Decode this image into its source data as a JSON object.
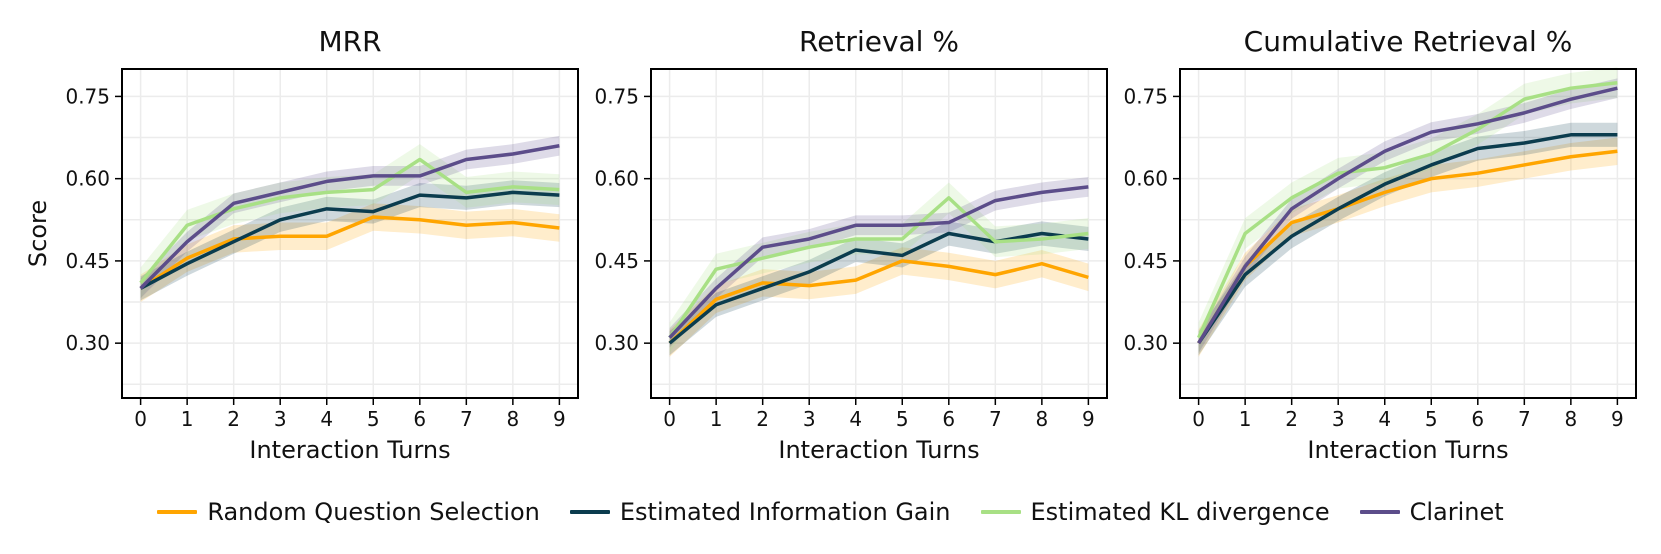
{
  "chart_data": [
    {
      "type": "line",
      "title": "MRR",
      "xlabel": "Interaction Turns",
      "ylabel": "Score",
      "x": [
        0,
        1,
        2,
        3,
        4,
        5,
        6,
        7,
        8,
        9
      ],
      "ylim": [
        0.2,
        0.8
      ],
      "yticks": [
        "0.30",
        "0.45",
        "0.60",
        "0.75"
      ],
      "grid": true,
      "series": [
        {
          "name": "Random Question Selection",
          "values": [
            0.4,
            0.455,
            0.49,
            0.495,
            0.495,
            0.53,
            0.525,
            0.515,
            0.52,
            0.51
          ]
        },
        {
          "name": "Estimated Information Gain",
          "values": [
            0.4,
            0.445,
            0.485,
            0.525,
            0.545,
            0.54,
            0.57,
            0.565,
            0.575,
            0.57
          ]
        },
        {
          "name": "Estimated KL divergence",
          "values": [
            0.41,
            0.515,
            0.545,
            0.565,
            0.575,
            0.58,
            0.635,
            0.575,
            0.585,
            0.58
          ]
        },
        {
          "name": "Clarinet",
          "values": [
            0.4,
            0.485,
            0.555,
            0.575,
            0.595,
            0.605,
            0.605,
            0.635,
            0.645,
            0.66
          ]
        }
      ]
    },
    {
      "type": "line",
      "title": "Retrieval %",
      "xlabel": "Interaction Turns",
      "ylabel": "",
      "x": [
        0,
        1,
        2,
        3,
        4,
        5,
        6,
        7,
        8,
        9
      ],
      "ylim": [
        0.2,
        0.8
      ],
      "yticks": [
        "0.30",
        "0.45",
        "0.60",
        "0.75"
      ],
      "grid": true,
      "series": [
        {
          "name": "Random Question Selection",
          "values": [
            0.3,
            0.38,
            0.41,
            0.405,
            0.415,
            0.45,
            0.44,
            0.425,
            0.445,
            0.42
          ]
        },
        {
          "name": "Estimated Information Gain",
          "values": [
            0.3,
            0.37,
            0.4,
            0.43,
            0.47,
            0.46,
            0.5,
            0.485,
            0.5,
            0.49
          ]
        },
        {
          "name": "Estimated KL divergence",
          "values": [
            0.31,
            0.435,
            0.455,
            0.475,
            0.49,
            0.49,
            0.565,
            0.485,
            0.49,
            0.5
          ]
        },
        {
          "name": "Clarinet",
          "values": [
            0.31,
            0.4,
            0.475,
            0.49,
            0.515,
            0.515,
            0.52,
            0.56,
            0.575,
            0.585
          ]
        }
      ]
    },
    {
      "type": "line",
      "title": "Cumulative Retrieval %",
      "xlabel": "Interaction Turns",
      "ylabel": "",
      "x": [
        0,
        1,
        2,
        3,
        4,
        5,
        6,
        7,
        8,
        9
      ],
      "ylim": [
        0.2,
        0.8
      ],
      "yticks": [
        "0.30",
        "0.45",
        "0.60",
        "0.75"
      ],
      "grid": true,
      "series": [
        {
          "name": "Random Question Selection",
          "values": [
            0.3,
            0.44,
            0.52,
            0.545,
            0.575,
            0.6,
            0.61,
            0.625,
            0.64,
            0.65
          ]
        },
        {
          "name": "Estimated Information Gain",
          "values": [
            0.3,
            0.425,
            0.495,
            0.545,
            0.59,
            0.625,
            0.655,
            0.665,
            0.68,
            0.68
          ]
        },
        {
          "name": "Estimated KL divergence",
          "values": [
            0.31,
            0.5,
            0.565,
            0.61,
            0.62,
            0.645,
            0.69,
            0.745,
            0.765,
            0.775
          ]
        },
        {
          "name": "Clarinet",
          "values": [
            0.3,
            0.44,
            0.545,
            0.6,
            0.65,
            0.685,
            0.7,
            0.72,
            0.745,
            0.765
          ]
        }
      ]
    }
  ],
  "legend": {
    "placement": "bottom-center",
    "items": [
      {
        "label": "Random Question Selection",
        "color": "#FFA500"
      },
      {
        "label": "Estimated Information Gain",
        "color": "#0B3C4E"
      },
      {
        "label": "Estimated KL divergence",
        "color": "#A8E085"
      },
      {
        "label": "Clarinet",
        "color": "#5C4D8A"
      }
    ]
  },
  "series_colors": [
    "#FFA500",
    "#0B3C4E",
    "#A8E085",
    "#5C4D8A"
  ]
}
